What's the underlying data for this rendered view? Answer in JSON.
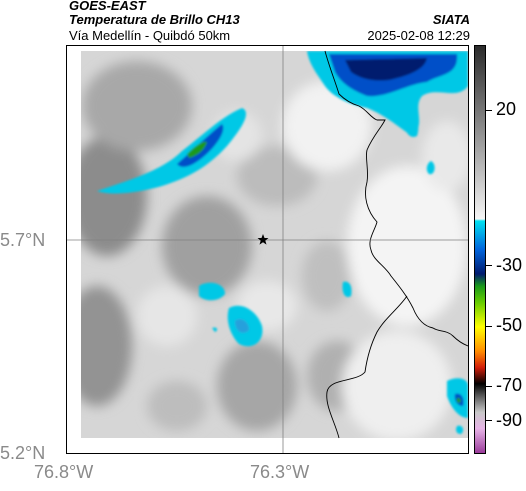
{
  "header": {
    "agency": "GOES-EAST",
    "product": "Temperatura de Brillo CH13",
    "region": "Vía Medellín - Quibdó 50km",
    "organization": "SIATA",
    "timestamp": "2025-02-08 12:29"
  },
  "map": {
    "latitude_labels": [
      "5.7°N",
      "5.2°N"
    ],
    "longitude_labels": [
      "76.8°W",
      "76.3°W"
    ],
    "marker_icon": "star-icon",
    "gridlines": true
  },
  "colorbar": {
    "labels": [
      "20",
      "-30",
      "-50",
      "-70",
      "-90"
    ],
    "colors": {
      "warm_gray_dark": "#3a3a3a",
      "warm_gray_light": "#f2f2f2",
      "cyan": "#00c8e6",
      "blue": "#0050c8",
      "navy": "#001a6e",
      "green": "#1a9a1a",
      "yellow": "#ffff00",
      "red": "#d21e0a",
      "black": "#000000",
      "magenta": "#c85ac8"
    }
  }
}
